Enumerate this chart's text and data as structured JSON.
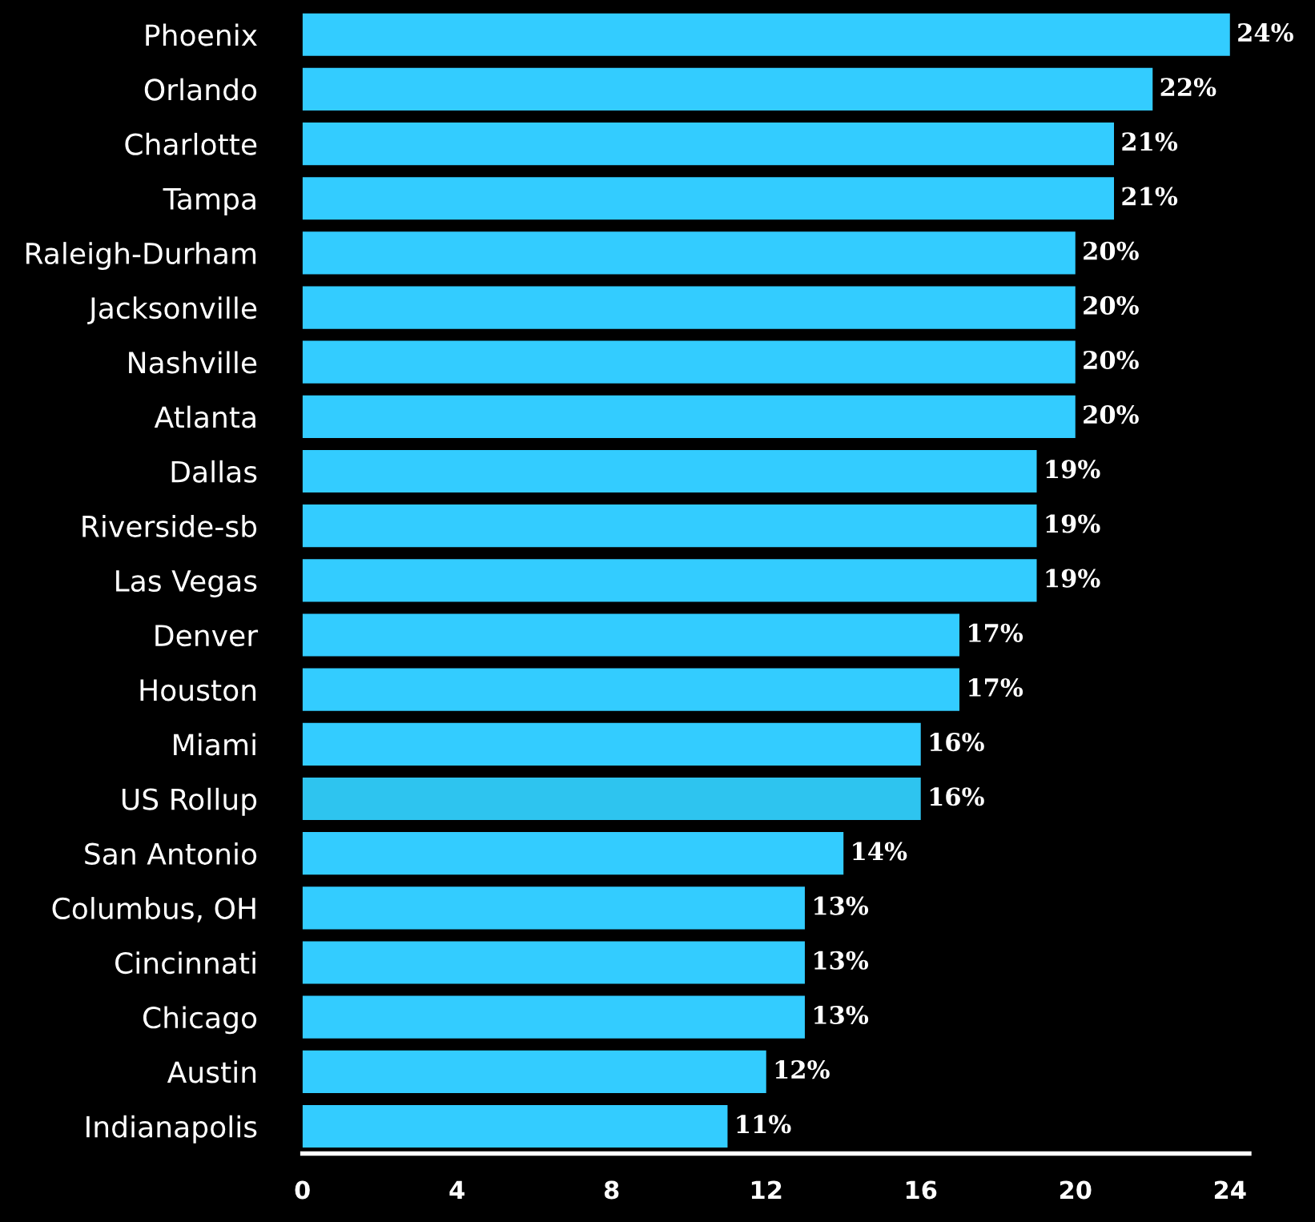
{
  "chart_data": {
    "type": "bar",
    "orientation": "horizontal",
    "categories": [
      "Phoenix",
      "Orlando",
      "Charlotte",
      "Tampa",
      "Raleigh-Durham",
      "Jacksonville",
      "Nashville",
      "Atlanta",
      "Dallas",
      "Riverside-sb",
      "Las Vegas",
      "Denver",
      "Houston",
      "Miami",
      "US Rollup",
      "San Antonio",
      "Columbus, OH",
      "Cincinnati",
      "Chicago",
      "Austin",
      "Indianapolis"
    ],
    "values": [
      24,
      22,
      21,
      21,
      20,
      20,
      20,
      20,
      19,
      19,
      19,
      17,
      17,
      16,
      16,
      14,
      13,
      13,
      13,
      12,
      11
    ],
    "value_labels": [
      "24%",
      "22%",
      "21%",
      "21%",
      "20%",
      "20%",
      "20%",
      "20%",
      "19%",
      "19%",
      "19%",
      "17%",
      "17%",
      "16%",
      "16%",
      "14%",
      "13%",
      "13%",
      "13%",
      "12%",
      "11%"
    ],
    "colors": [
      "#33ccff",
      "#33ccff",
      "#33ccff",
      "#33ccff",
      "#33ccff",
      "#33ccff",
      "#33ccff",
      "#33ccff",
      "#33ccff",
      "#33ccff",
      "#33ccff",
      "#33ccff",
      "#33ccff",
      "#33ccff",
      "#2ec4ef",
      "#33ccff",
      "#33ccff",
      "#33ccff",
      "#33ccff",
      "#33ccff",
      "#33ccff"
    ],
    "xlim": [
      0,
      24.5
    ],
    "xticks": [
      0,
      4,
      8,
      12,
      16,
      20,
      24
    ],
    "grid": false,
    "legend": false
  }
}
